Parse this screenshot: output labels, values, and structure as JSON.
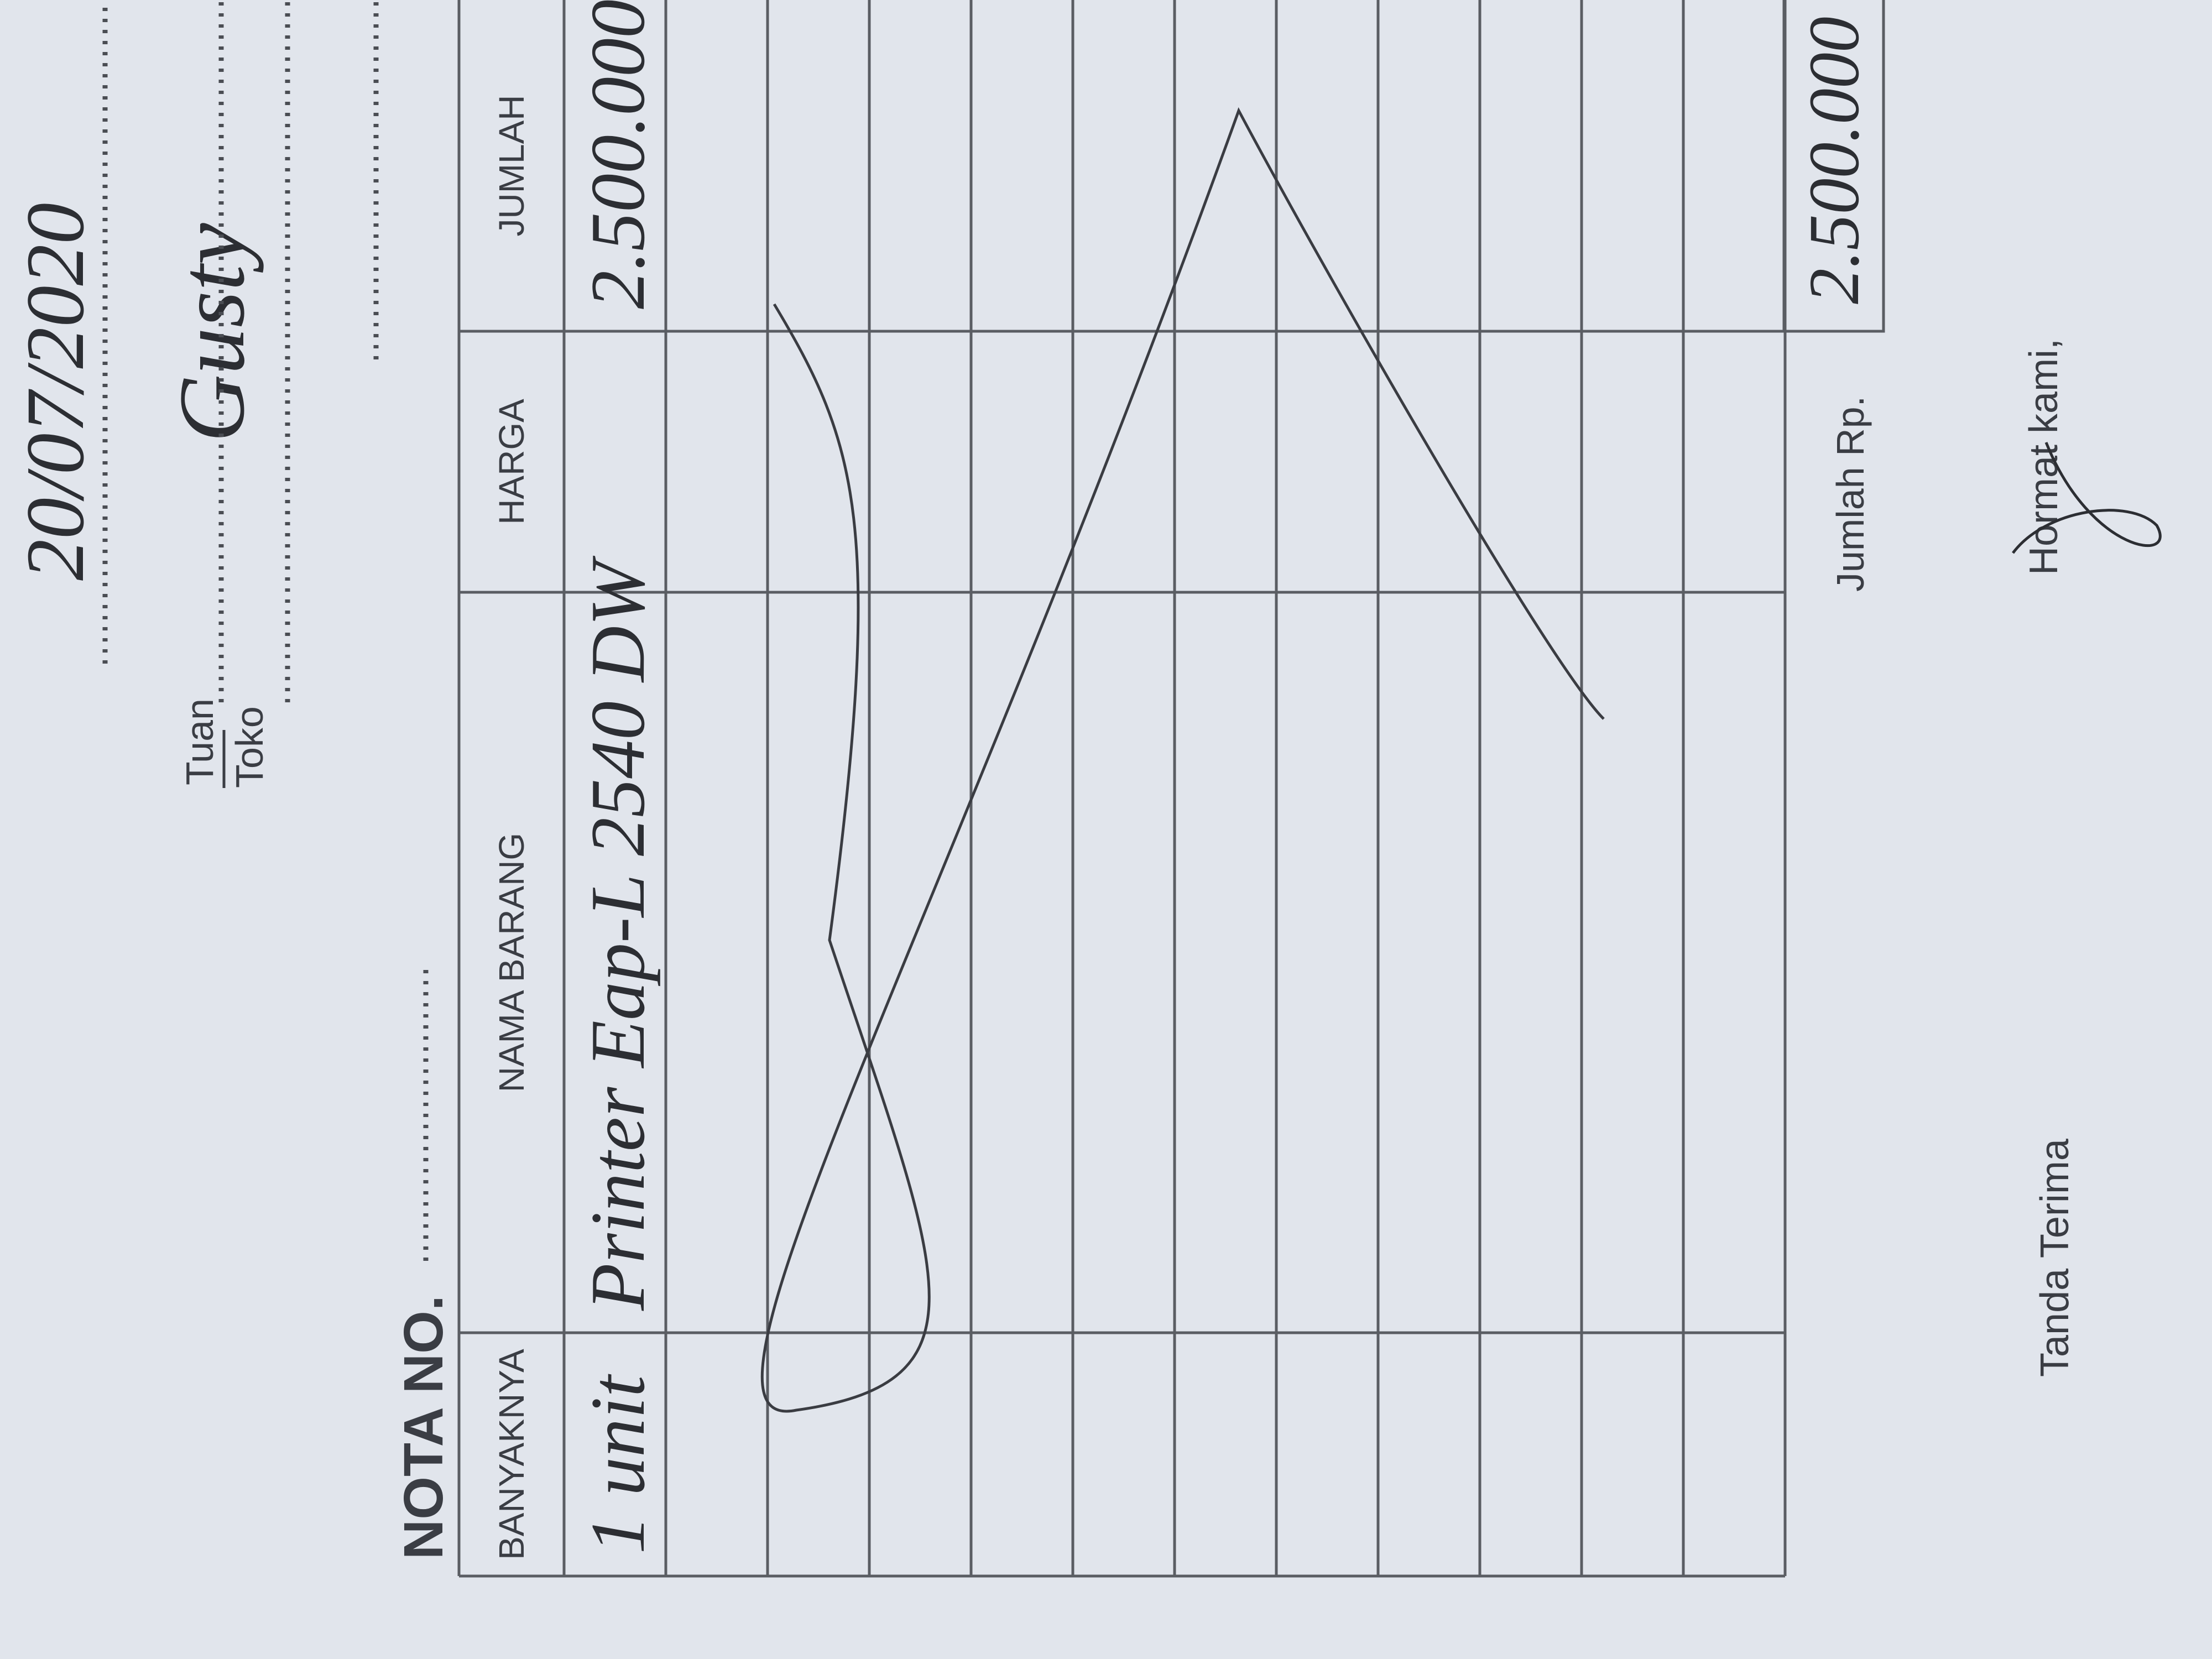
{
  "header": {
    "date": "20/07/2020",
    "customer_label_1": "Tuan",
    "customer_label_2": "Toko",
    "customer": "Gusty",
    "nota_label": "NOTA NO."
  },
  "table": {
    "headers": [
      "BANYAKNYA",
      "NAMA BARANG",
      "HARGA",
      "JUMLAH"
    ],
    "rows": [
      [
        "1 unit",
        "Printer Eap-L 2540 DW",
        "",
        "2.500.000"
      ]
    ]
  },
  "footer": {
    "total_label": "Jumlah Rp.",
    "total": "2.500.000",
    "receiver": "Tanda Terima",
    "sender": "Hormat kami,"
  }
}
